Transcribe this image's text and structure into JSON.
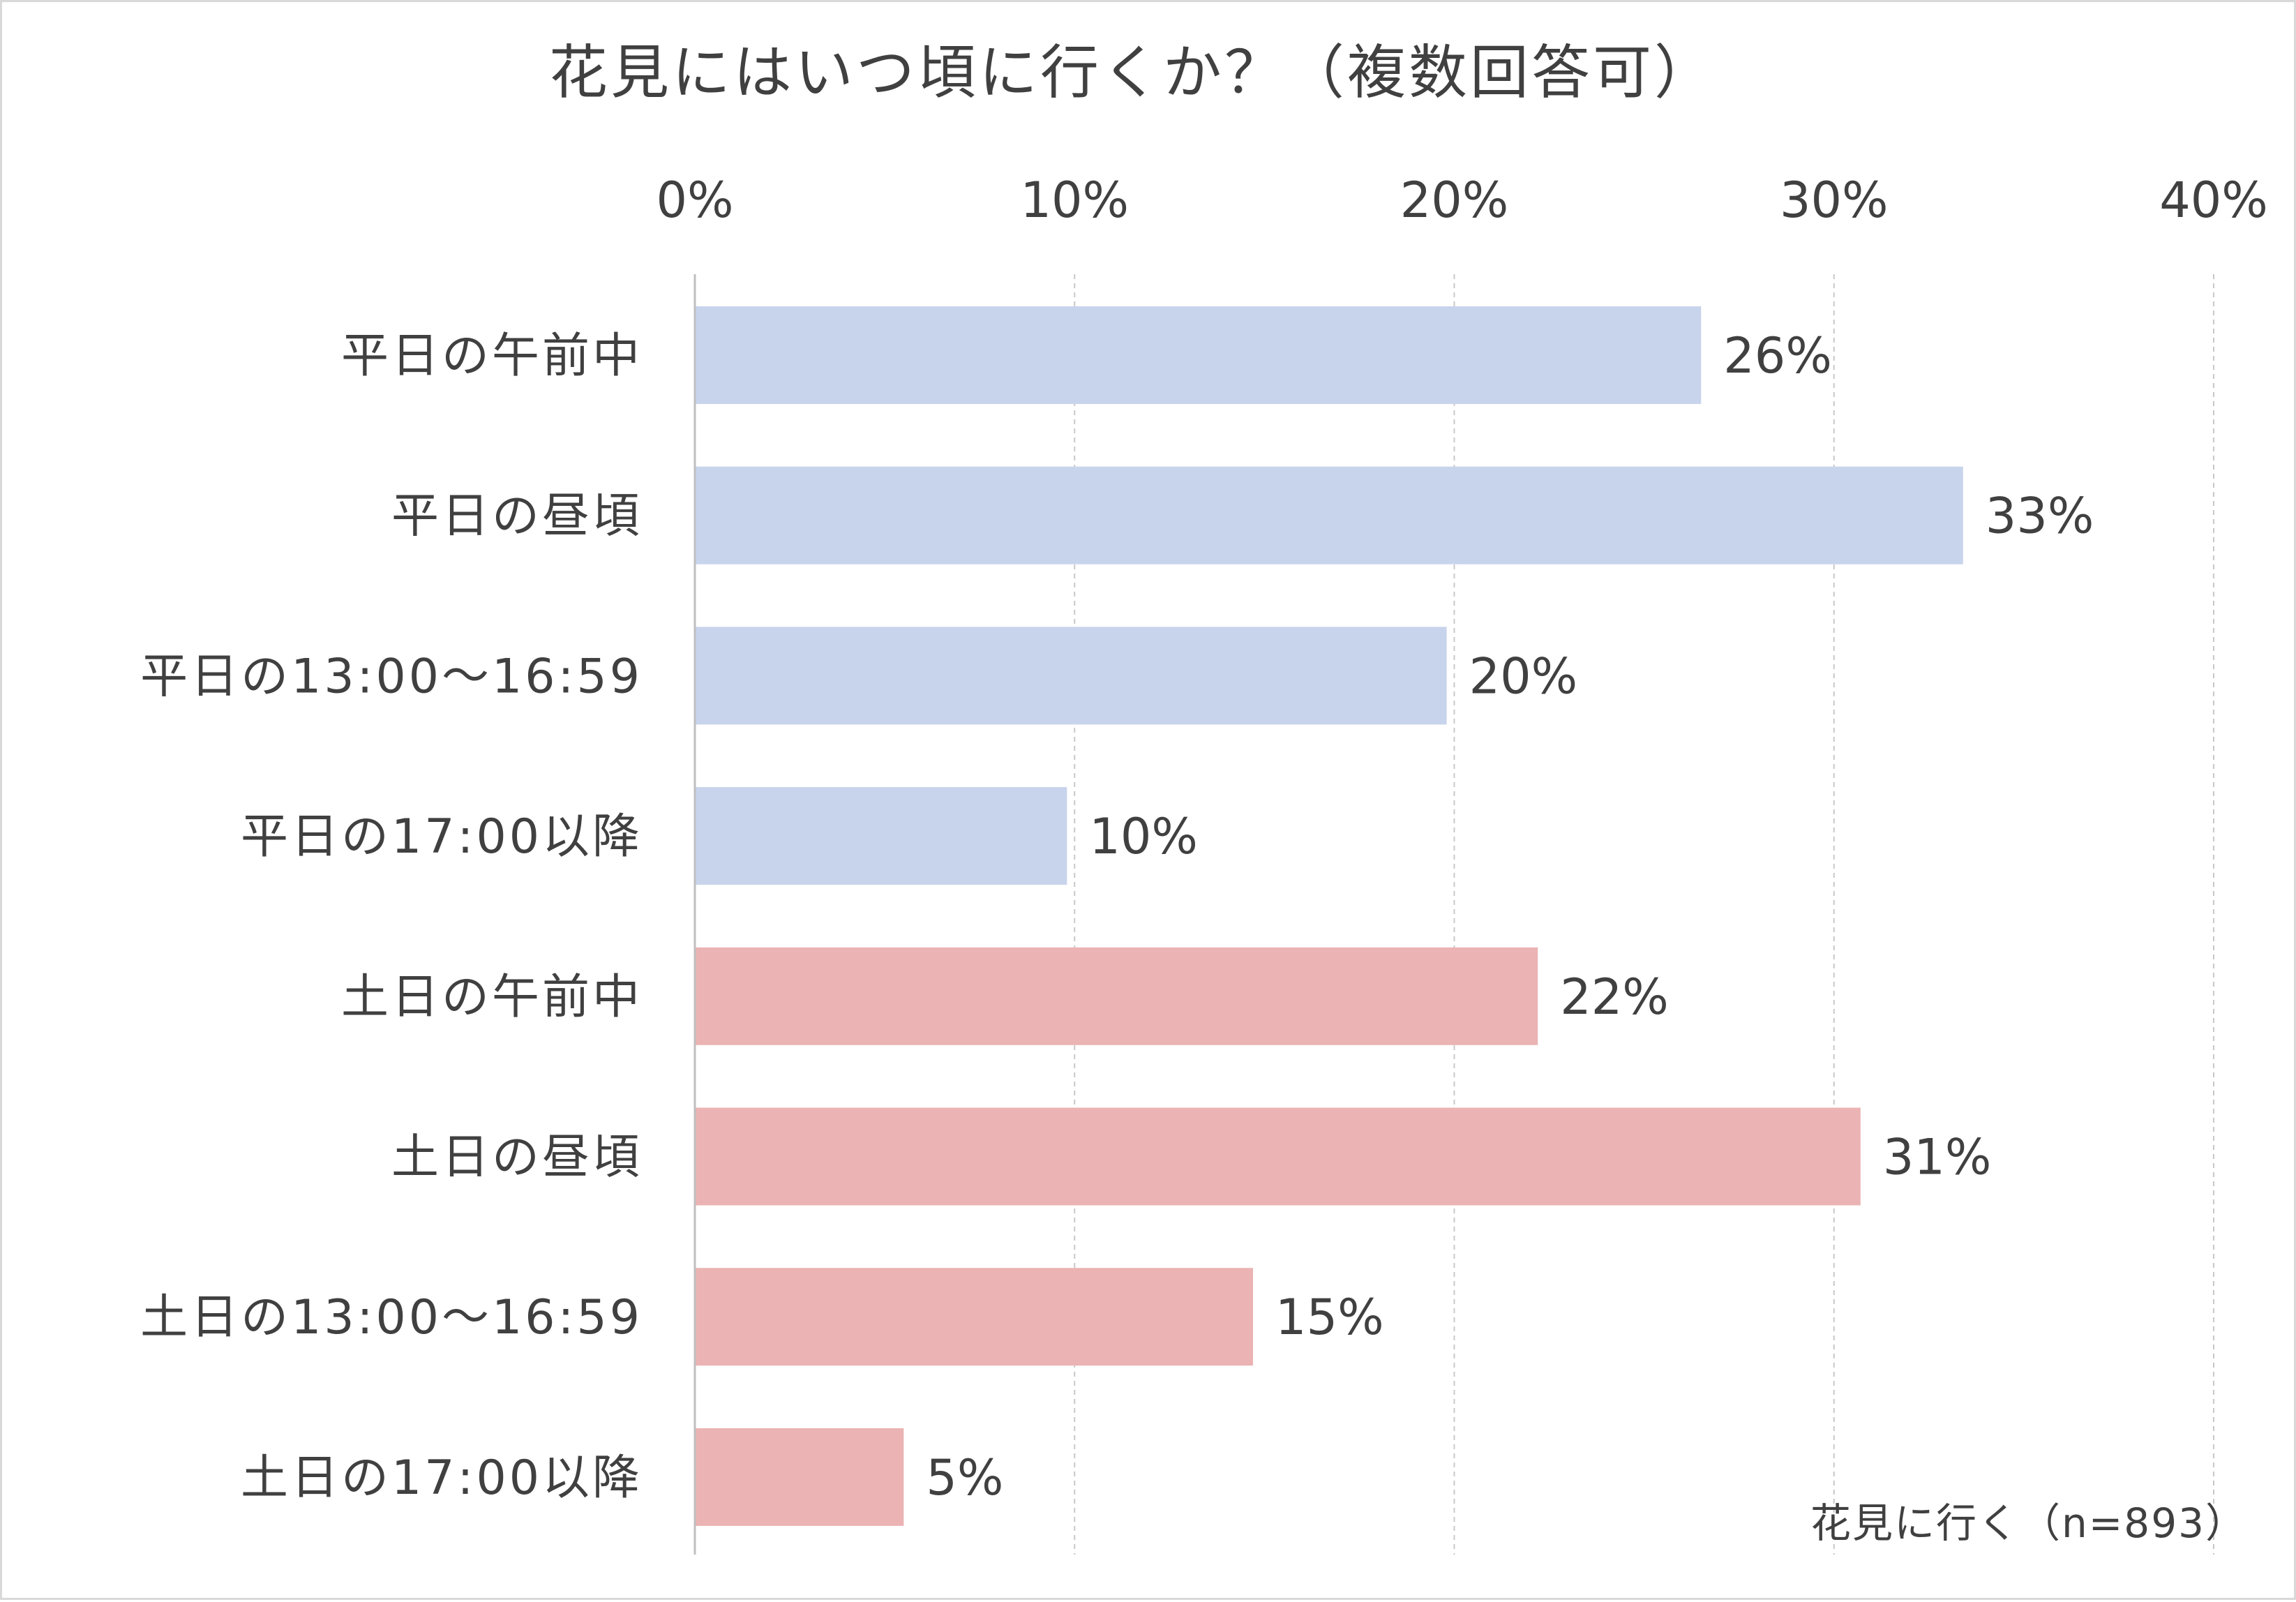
{
  "chart_data": {
    "type": "bar",
    "orientation": "horizontal",
    "title": "花見にはいつ頃に行くか？（複数回答可）",
    "note": "花見に行く（n=893）",
    "x_ticks": [
      "0%",
      "10%",
      "20%",
      "30%",
      "40%"
    ],
    "xlim": [
      0,
      40
    ],
    "grid": "vertical-dashed",
    "bars": [
      {
        "label": "平日の午前中",
        "value": 26.5,
        "value_label": "26%",
        "color": "#c8d4ec"
      },
      {
        "label": "平日の昼頃",
        "value": 33.4,
        "value_label": "33%",
        "color": "#c8d4ec"
      },
      {
        "label": "平日の13:00～16:59",
        "value": 19.8,
        "value_label": "20%",
        "color": "#c8d4ec"
      },
      {
        "label": "平日の17:00以降",
        "value": 9.8,
        "value_label": "10%",
        "color": "#c8d4ec"
      },
      {
        "label": "土日の午前中",
        "value": 22.2,
        "value_label": "22%",
        "color": "#ebb3b3"
      },
      {
        "label": "土日の昼頃",
        "value": 30.7,
        "value_label": "31%",
        "color": "#ebb3b3"
      },
      {
        "label": "土日の13:00～16:59",
        "value": 14.7,
        "value_label": "15%",
        "color": "#ebb3b3"
      },
      {
        "label": "土日の17:00以降",
        "value": 5.5,
        "value_label": "5%",
        "color": "#ebb3b3"
      }
    ]
  }
}
